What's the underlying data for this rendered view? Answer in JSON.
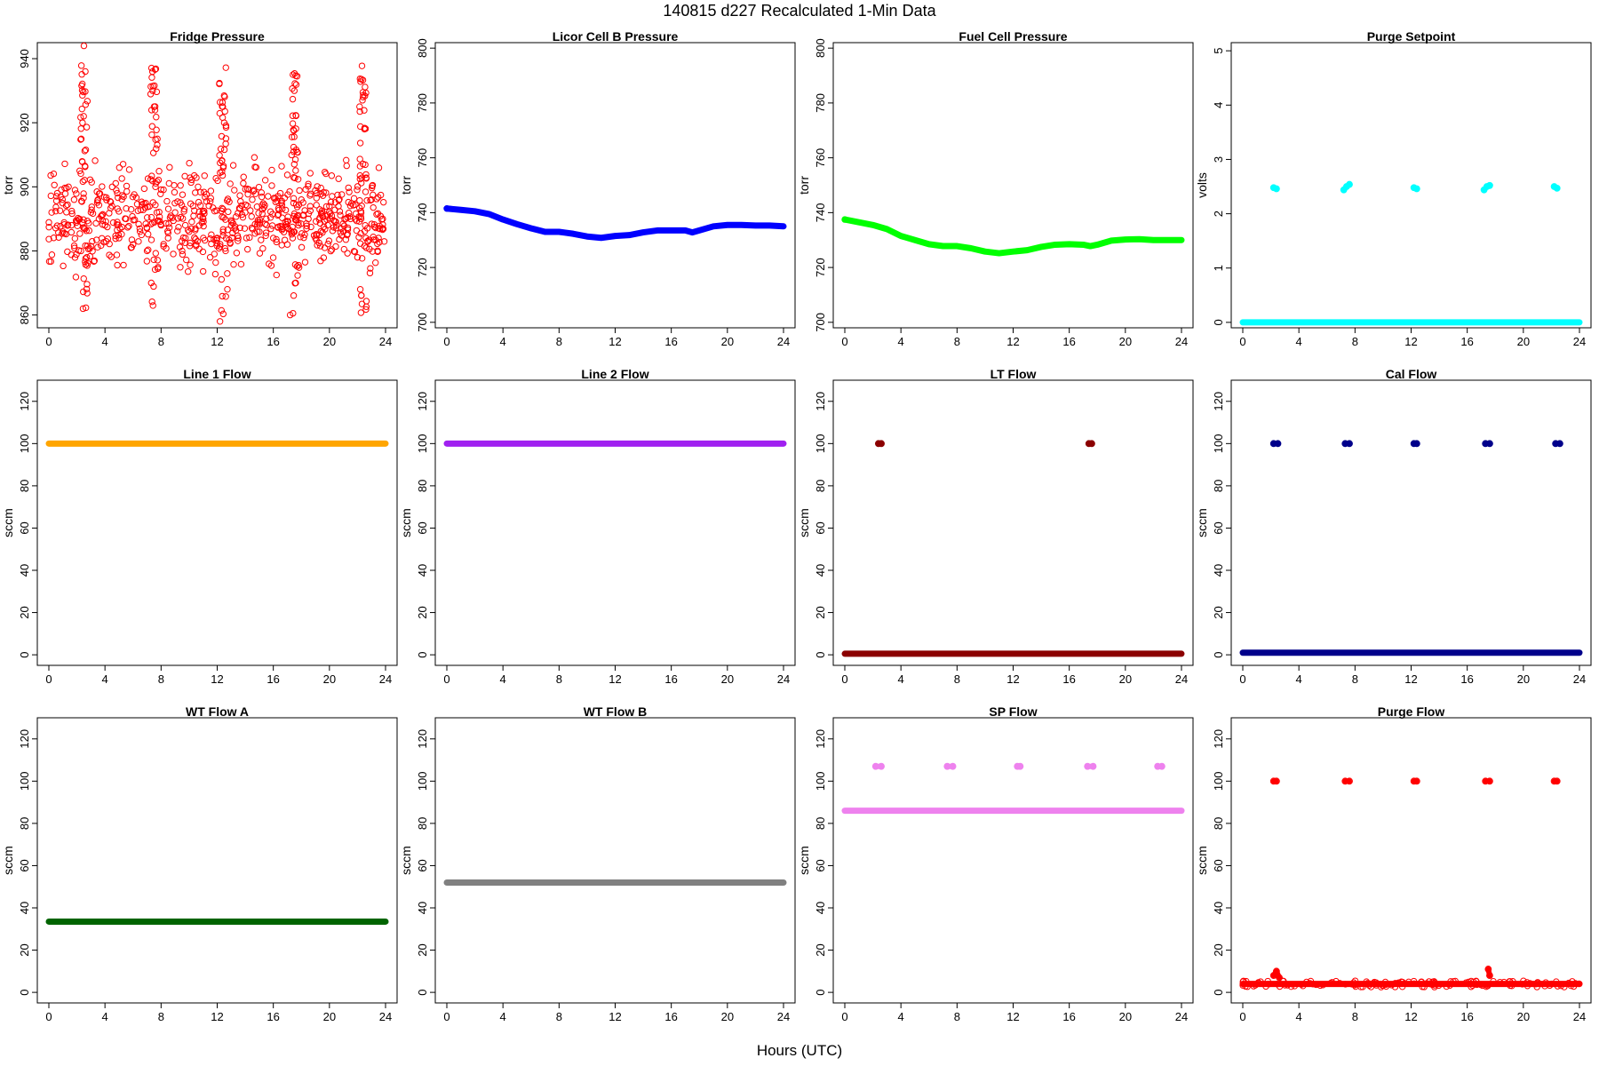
{
  "figure": {
    "title": "140815   d227   Recalculated 1-Min Data",
    "xlabel": "Hours (UTC)"
  },
  "chart_data": [
    {
      "type": "scatter",
      "title": "Fridge Pressure",
      "ylabel": "torr",
      "color": "#ff0000",
      "marker": "open-circle",
      "xlim": [
        0,
        24
      ],
      "ylim": [
        856,
        945
      ],
      "xticks": [
        0,
        4,
        8,
        12,
        16,
        20,
        24
      ],
      "yticks": [
        860,
        880,
        900,
        920,
        940
      ],
      "series": [
        {
          "x": [
            0.2,
            0.6,
            1.0,
            1.4,
            1.8,
            2.2,
            2.4,
            2.5,
            2.6,
            2.7,
            3.0,
            3.5,
            4.0,
            4.5,
            5.0,
            5.5,
            6.0,
            6.5,
            7.0,
            7.3,
            7.4,
            7.5,
            7.6,
            7.7,
            8.0,
            8.5,
            9.0,
            9.5,
            10.0,
            10.5,
            11.0,
            11.5,
            12.0,
            12.2,
            12.4,
            12.5,
            12.6,
            13.0,
            13.5,
            14.0,
            14.5,
            15.0,
            15.5,
            16.0,
            16.5,
            17.0,
            17.2,
            17.4,
            17.5,
            17.6,
            17.8,
            18.0,
            18.5,
            19.0,
            19.5,
            20.0,
            20.5,
            21.0,
            21.5,
            22.0,
            22.2,
            22.4,
            22.5,
            22.6,
            23.0,
            23.5,
            23.8
          ],
          "y": [
            892,
            898,
            886,
            900,
            896,
            905,
            920,
            944,
            936,
            878,
            892,
            896,
            888,
            894,
            884,
            890,
            882,
            886,
            880,
            870,
            930,
            925,
            900,
            892,
            888,
            884,
            892,
            880,
            886,
            882,
            890,
            878,
            884,
            858,
            925,
            920,
            880,
            888,
            884,
            892,
            896,
            886,
            890,
            884,
            898,
            882,
            860,
            935,
            930,
            870,
            888,
            896,
            890,
            884,
            892,
            894,
            888,
            886,
            890,
            878,
            868,
            928,
            918,
            884,
            896,
            884,
            890
          ]
        }
      ]
    },
    {
      "type": "scatter",
      "title": "Licor Cell B Pressure",
      "ylabel": "torr",
      "color": "#0000ff",
      "marker": "filled-circle",
      "xlim": [
        0,
        24
      ],
      "ylim": [
        698,
        802
      ],
      "xticks": [
        0,
        4,
        8,
        12,
        16,
        20,
        24
      ],
      "yticks": [
        700,
        720,
        740,
        760,
        780,
        800
      ],
      "series": [
        {
          "x": [
            0,
            1,
            2,
            3,
            4,
            5,
            6,
            7,
            8,
            9,
            10,
            11,
            12,
            13,
            14,
            15,
            16,
            17,
            17.5,
            18,
            19,
            20,
            21,
            22,
            23,
            24
          ],
          "y": [
            741.5,
            741,
            740.5,
            739.5,
            737.5,
            735.8,
            734.3,
            733,
            733,
            732.3,
            731.3,
            730.8,
            731.5,
            731.8,
            732.8,
            733.5,
            733.5,
            733.5,
            732.8,
            733.5,
            735,
            735.5,
            735.5,
            735.3,
            735.3,
            735
          ]
        }
      ]
    },
    {
      "type": "scatter",
      "title": "Fuel Cell Pressure",
      "ylabel": "torr",
      "color": "#00ff00",
      "marker": "filled-circle",
      "xlim": [
        0,
        24
      ],
      "ylim": [
        698,
        802
      ],
      "xticks": [
        0,
        4,
        8,
        12,
        16,
        20,
        24
      ],
      "yticks": [
        700,
        720,
        740,
        760,
        780,
        800
      ],
      "series": [
        {
          "x": [
            0,
            1,
            2,
            3,
            4,
            5,
            6,
            7,
            8,
            9,
            10,
            11,
            12,
            13,
            14,
            15,
            16,
            17,
            17.5,
            18,
            19,
            20,
            21,
            22,
            23,
            24
          ],
          "y": [
            737.5,
            736.5,
            735.5,
            734,
            731.5,
            730,
            728.5,
            727.8,
            727.8,
            727,
            725.8,
            725.2,
            725.8,
            726.3,
            727.5,
            728.3,
            728.5,
            728.3,
            727.8,
            728.3,
            729.8,
            730.2,
            730.3,
            730,
            730,
            730
          ]
        }
      ]
    },
    {
      "type": "scatter",
      "title": "Purge Setpoint",
      "ylabel": "volts",
      "color": "#00ffff",
      "marker": "filled-circle",
      "xlim": [
        0,
        24
      ],
      "ylim": [
        -0.1,
        5.15
      ],
      "xticks": [
        0,
        4,
        8,
        12,
        16,
        20,
        24
      ],
      "yticks": [
        0,
        1,
        2,
        3,
        4,
        5
      ],
      "series": [
        {
          "x": [
            0,
            24
          ],
          "y": [
            0,
            0
          ],
          "style": "band"
        },
        {
          "x": [
            2.2,
            2.4,
            7.2,
            7.4,
            7.6,
            12.2,
            12.4,
            17.2,
            17.4,
            17.6,
            22.2,
            22.4
          ],
          "y": [
            2.48,
            2.46,
            2.44,
            2.5,
            2.54,
            2.48,
            2.46,
            2.44,
            2.5,
            2.52,
            2.5,
            2.47
          ]
        }
      ]
    },
    {
      "type": "scatter",
      "title": "Line 1 Flow",
      "ylabel": "sccm",
      "color": "#ffa500",
      "marker": "filled-circle",
      "xlim": [
        0,
        24
      ],
      "ylim": [
        -5,
        130
      ],
      "xticks": [
        0,
        4,
        8,
        12,
        16,
        20,
        24
      ],
      "yticks": [
        0,
        20,
        40,
        60,
        80,
        100,
        120
      ],
      "series": [
        {
          "x": [
            0,
            24
          ],
          "y": [
            100,
            100
          ],
          "style": "band"
        }
      ]
    },
    {
      "type": "scatter",
      "title": "Line 2 Flow",
      "ylabel": "sccm",
      "color": "#a020f0",
      "marker": "filled-circle",
      "xlim": [
        0,
        24
      ],
      "ylim": [
        -5,
        130
      ],
      "xticks": [
        0,
        4,
        8,
        12,
        16,
        20,
        24
      ],
      "yticks": [
        0,
        20,
        40,
        60,
        80,
        100,
        120
      ],
      "series": [
        {
          "x": [
            0,
            24
          ],
          "y": [
            100,
            100
          ],
          "style": "band"
        }
      ]
    },
    {
      "type": "scatter",
      "title": "LT Flow",
      "ylabel": "sccm",
      "color": "#8b0000",
      "marker": "filled-circle",
      "xlim": [
        0,
        24
      ],
      "ylim": [
        -5,
        130
      ],
      "xticks": [
        0,
        4,
        8,
        12,
        16,
        20,
        24
      ],
      "yticks": [
        0,
        20,
        40,
        60,
        80,
        100,
        120
      ],
      "series": [
        {
          "x": [
            0,
            24
          ],
          "y": [
            0.5,
            0.5
          ],
          "style": "band"
        },
        {
          "x": [
            2.4,
            2.6,
            17.4,
            17.6
          ],
          "y": [
            100,
            100,
            100,
            100
          ]
        }
      ]
    },
    {
      "type": "scatter",
      "title": "Cal Flow",
      "ylabel": "sccm",
      "color": "#00008b",
      "marker": "filled-circle",
      "xlim": [
        0,
        24
      ],
      "ylim": [
        -5,
        130
      ],
      "xticks": [
        0,
        4,
        8,
        12,
        16,
        20,
        24
      ],
      "yticks": [
        0,
        20,
        40,
        60,
        80,
        100,
        120
      ],
      "series": [
        {
          "x": [
            0,
            24
          ],
          "y": [
            1,
            1
          ],
          "style": "band"
        },
        {
          "x": [
            2.2,
            2.5,
            7.3,
            7.6,
            12.2,
            12.4,
            17.3,
            17.6,
            22.3,
            22.6
          ],
          "y": [
            100,
            100,
            100,
            100,
            100,
            100,
            100,
            100,
            100,
            100
          ]
        }
      ]
    },
    {
      "type": "scatter",
      "title": "WT Flow A",
      "ylabel": "sccm",
      "color": "#006400",
      "marker": "filled-circle",
      "xlim": [
        0,
        24
      ],
      "ylim": [
        -5,
        130
      ],
      "xticks": [
        0,
        4,
        8,
        12,
        16,
        20,
        24
      ],
      "yticks": [
        0,
        20,
        40,
        60,
        80,
        100,
        120
      ],
      "series": [
        {
          "x": [
            0,
            24
          ],
          "y": [
            33.5,
            33.5
          ],
          "style": "band"
        }
      ]
    },
    {
      "type": "scatter",
      "title": "WT Flow B",
      "ylabel": "sccm",
      "color": "#808080",
      "marker": "filled-circle",
      "xlim": [
        0,
        24
      ],
      "ylim": [
        -5,
        130
      ],
      "xticks": [
        0,
        4,
        8,
        12,
        16,
        20,
        24
      ],
      "yticks": [
        0,
        20,
        40,
        60,
        80,
        100,
        120
      ],
      "series": [
        {
          "x": [
            0,
            24
          ],
          "y": [
            52,
            52
          ],
          "style": "band"
        }
      ]
    },
    {
      "type": "scatter",
      "title": "SP Flow",
      "ylabel": "sccm",
      "color": "#ee82ee",
      "marker": "filled-circle",
      "xlim": [
        0,
        24
      ],
      "ylim": [
        -5,
        130
      ],
      "xticks": [
        0,
        4,
        8,
        12,
        16,
        20,
        24
      ],
      "yticks": [
        0,
        20,
        40,
        60,
        80,
        100,
        120
      ],
      "series": [
        {
          "x": [
            0,
            24
          ],
          "y": [
            86,
            86
          ],
          "style": "band"
        },
        {
          "x": [
            2.2,
            2.6,
            7.3,
            7.7,
            12.3,
            12.5,
            17.3,
            17.7,
            22.3,
            22.6
          ],
          "y": [
            107,
            107,
            107,
            107,
            107,
            107,
            107,
            107,
            107,
            107
          ]
        }
      ]
    },
    {
      "type": "scatter",
      "title": "Purge Flow",
      "ylabel": "sccm",
      "color": "#ff0000",
      "marker": "open-circle",
      "xlim": [
        0,
        24
      ],
      "ylim": [
        -5,
        130
      ],
      "xticks": [
        0,
        4,
        8,
        12,
        16,
        20,
        24
      ],
      "yticks": [
        0,
        20,
        40,
        60,
        80,
        100,
        120
      ],
      "series": [
        {
          "x": [
            0,
            24
          ],
          "y": [
            4,
            4
          ],
          "style": "band"
        },
        {
          "x": [
            2.2,
            2.4,
            2.6,
            17.5,
            17.6
          ],
          "y": [
            8,
            10,
            7,
            11,
            8
          ]
        },
        {
          "x": [
            2.2,
            2.4,
            7.3,
            7.6,
            12.2,
            12.4,
            17.3,
            17.6,
            22.2,
            22.4
          ],
          "y": [
            100,
            100,
            100,
            100,
            100,
            100,
            100,
            100,
            100,
            100
          ]
        }
      ]
    }
  ]
}
